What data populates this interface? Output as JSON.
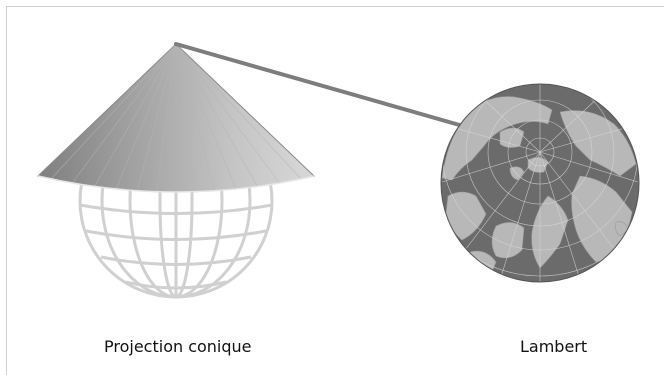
{
  "labels": {
    "left": "Projection conique",
    "right": "Lambert"
  },
  "colors": {
    "frame": "#cfcfcf",
    "sphere_grid": "#d0d0d0",
    "cone_dark": "#8a8a8a",
    "cone_light": "#c9c9c9",
    "connector": "#7d7d7d",
    "ocean": "#6b6b6b",
    "land": "#b8b8b8"
  }
}
